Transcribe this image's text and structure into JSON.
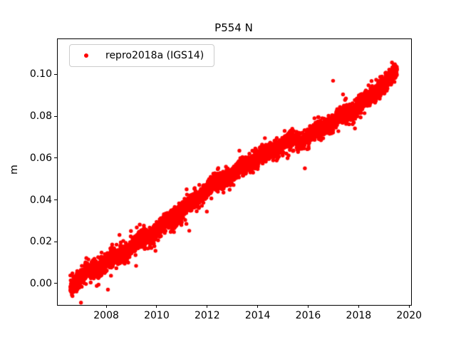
{
  "chart_data": {
    "type": "scatter",
    "title": "P554 N",
    "xlabel": "",
    "ylabel": "m",
    "xlim": [
      2006.05,
      2020.05
    ],
    "ylim": [
      -0.0099,
      0.1172
    ],
    "x_ticks": [
      2008,
      2010,
      2012,
      2014,
      2016,
      2018,
      2020
    ],
    "y_ticks": [
      0.0,
      0.02,
      0.04,
      0.06,
      0.08,
      0.1
    ],
    "y_tick_decimals": 2,
    "grid": false,
    "legend": {
      "label": "repro2018a (IGS14)",
      "location": "upper left"
    },
    "series": [
      {
        "name": "repro2018a (IGS14)",
        "color": "#ff0000",
        "marker": "dot",
        "marker_radius_px": 2.7,
        "x_start": 2006.55,
        "x_end": 2019.49,
        "n_points": 4700,
        "trend_anchors": [
          [
            2006.55,
            -0.001
          ],
          [
            2007.0,
            0.004
          ],
          [
            2008.0,
            0.0105
          ],
          [
            2009.0,
            0.018
          ],
          [
            2010.0,
            0.026
          ],
          [
            2011.0,
            0.035
          ],
          [
            2012.0,
            0.046
          ],
          [
            2013.0,
            0.053
          ],
          [
            2014.0,
            0.061
          ],
          [
            2015.0,
            0.067
          ],
          [
            2016.0,
            0.071
          ],
          [
            2017.0,
            0.078
          ],
          [
            2018.0,
            0.0855
          ],
          [
            2019.0,
            0.096
          ],
          [
            2019.49,
            0.102
          ]
        ],
        "seasonal_amplitude": 0.001,
        "noise_std": 0.002,
        "outlier_fraction": 0.018,
        "outlier_std": 0.005,
        "seed": 7
      }
    ]
  },
  "colors": {
    "marker": "#ff0000",
    "text": "#000000",
    "legend_border": "#cccccc",
    "background": "#ffffff"
  }
}
